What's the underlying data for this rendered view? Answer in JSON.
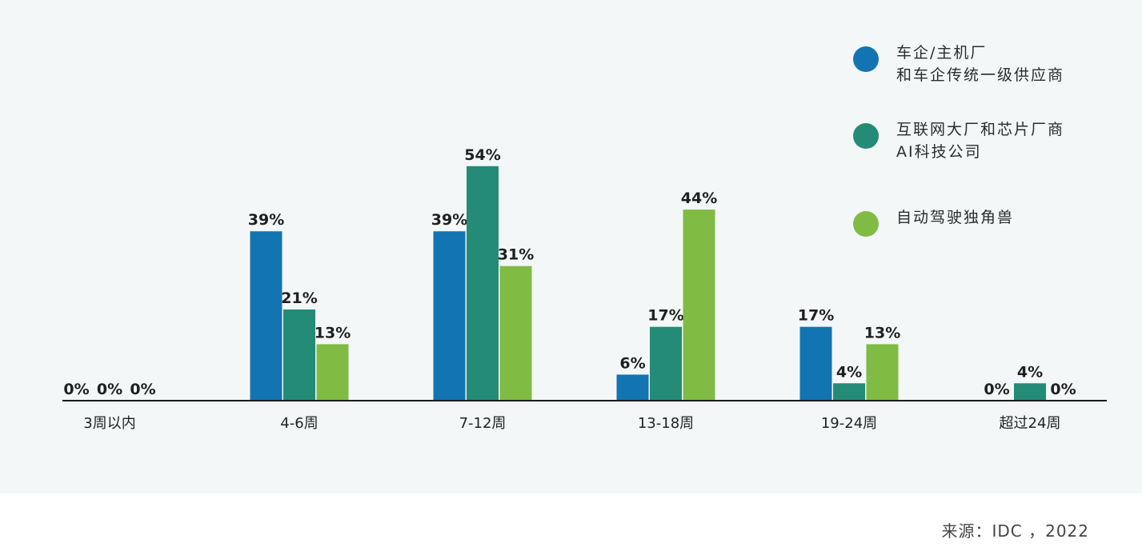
{
  "chart_data": {
    "type": "bar",
    "categories": [
      "3周以内",
      "4-6周",
      "7-12周",
      "13-18周",
      "19-24周",
      "超过24周"
    ],
    "series": [
      {
        "name": "车企/主机厂\n和车企传统一级供应商",
        "color": "#1374b2",
        "values": [
          0,
          39,
          39,
          6,
          17,
          0
        ]
      },
      {
        "name": "互联网大厂和芯片厂商\nAI科技公司",
        "color": "#248b76",
        "values": [
          0,
          21,
          54,
          17,
          4,
          4
        ]
      },
      {
        "name": "自动驾驶独角兽",
        "color": "#80bb43",
        "values": [
          0,
          13,
          31,
          44,
          13,
          0
        ]
      }
    ],
    "value_suffix": "%",
    "ylim": [
      0,
      60
    ],
    "grid": false,
    "legend_position": "top-right"
  },
  "source": "来源：IDC ，2022"
}
